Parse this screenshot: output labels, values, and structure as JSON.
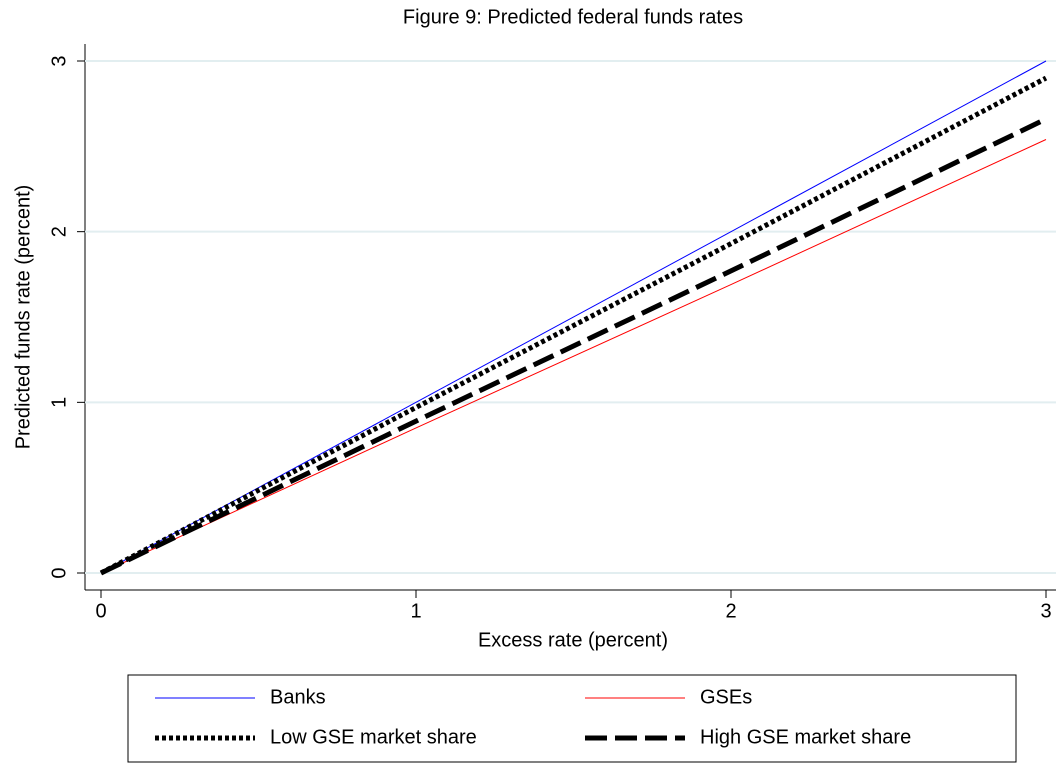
{
  "chart_data": {
    "type": "line",
    "title": "Figure 9: Predicted federal funds rates",
    "x_label": "Excess rate (percent)",
    "y_label": "Predicted funds rate (percent)",
    "x": [
      0,
      1,
      2,
      3
    ],
    "series": [
      {
        "name": "Banks",
        "color": "#0000ff",
        "dash": "solid",
        "width": 1,
        "values": [
          0,
          1,
          2,
          3
        ]
      },
      {
        "name": "GSEs",
        "color": "#ff0000",
        "dash": "solid",
        "width": 1,
        "values": [
          0,
          0.85,
          1.69,
          2.54
        ]
      },
      {
        "name": "Low GSE market share",
        "color": "#000000",
        "dash": "dot",
        "width": 5,
        "values": [
          0,
          0.97,
          1.93,
          2.9
        ]
      },
      {
        "name": "High GSE market share",
        "color": "#000000",
        "dash": "dash",
        "width": 5,
        "values": [
          0,
          0.89,
          1.77,
          2.66
        ]
      }
    ],
    "xlim": [
      0,
      3
    ],
    "xticks": [
      0,
      1,
      2,
      3
    ],
    "ylim": [
      0,
      3
    ],
    "yticks": [
      0,
      1,
      2,
      3
    ],
    "grid": true,
    "legend": "bottom"
  }
}
